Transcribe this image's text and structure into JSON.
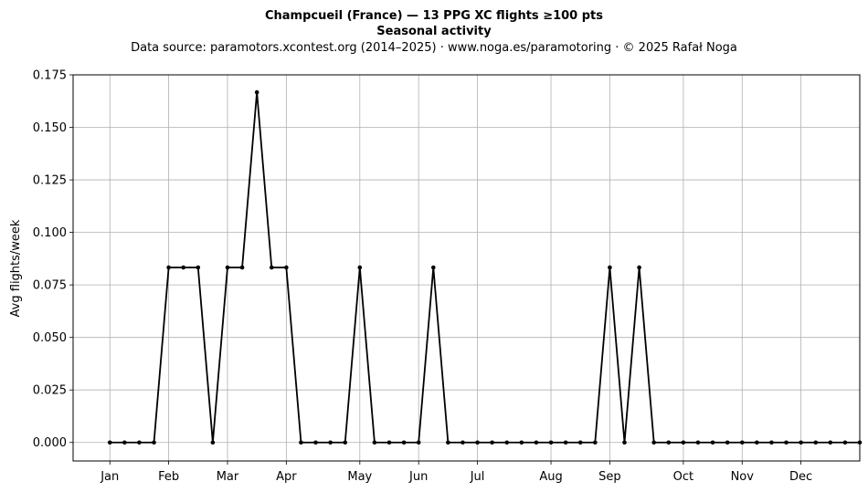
{
  "chart_data": {
    "type": "line",
    "title": "Champcueil (France)  —  13 PPG XC flights ≥100 pts",
    "subtitle": "Seasonal activity",
    "source_line": "Data source: paramotors.xcontest.org (2014–2025)  ·  www.noga.es/paramotoring  ·  © 2025 Rafał Noga",
    "xlabel": "",
    "ylabel": "Avg flights/week",
    "x_unit": "week",
    "xlim": [
      0,
      53.5
    ],
    "ylim": [
      -0.0088,
      0.175
    ],
    "grid": true,
    "yticks": [
      0.0,
      0.025,
      0.05,
      0.075,
      0.1,
      0.125,
      0.15,
      0.175
    ],
    "ytick_labels": [
      "0.000",
      "0.025",
      "0.050",
      "0.075",
      "0.100",
      "0.125",
      "0.150",
      "0.175"
    ],
    "xticks": [
      {
        "week": 2.5,
        "label": "Jan"
      },
      {
        "week": 6.5,
        "label": "Feb"
      },
      {
        "week": 10.5,
        "label": "Mar"
      },
      {
        "week": 14.5,
        "label": "Apr"
      },
      {
        "week": 19.5,
        "label": "May"
      },
      {
        "week": 23.5,
        "label": "Jun"
      },
      {
        "week": 27.5,
        "label": "Jul"
      },
      {
        "week": 32.5,
        "label": "Aug"
      },
      {
        "week": 36.5,
        "label": "Sep"
      },
      {
        "week": 41.5,
        "label": "Oct"
      },
      {
        "week": 45.5,
        "label": "Nov"
      },
      {
        "week": 49.5,
        "label": "Dec"
      }
    ],
    "series": [
      {
        "color": "#000000",
        "x": [
          2.5,
          3.5,
          4.5,
          5.5,
          6.5,
          7.5,
          8.5,
          9.5,
          10.5,
          11.5,
          12.5,
          13.5,
          14.5,
          15.5,
          16.5,
          17.5,
          18.5,
          19.5,
          20.5,
          21.5,
          22.5,
          23.5,
          24.5,
          25.5,
          26.5,
          27.5,
          28.5,
          29.5,
          30.5,
          31.5,
          32.5,
          33.5,
          34.5,
          35.5,
          36.5,
          37.5,
          38.5,
          39.5,
          40.5,
          41.5,
          42.5,
          43.5,
          44.5,
          45.5,
          46.5,
          47.5,
          48.5,
          49.5,
          50.5,
          51.5,
          52.5,
          53.5
        ],
        "y": [
          0,
          0,
          0,
          0,
          0.0833,
          0.0833,
          0.0833,
          0,
          0.0833,
          0.0833,
          0.1667,
          0.0833,
          0.0833,
          0,
          0,
          0,
          0,
          0.0833,
          0,
          0,
          0,
          0,
          0.0833,
          0,
          0,
          0,
          0,
          0,
          0,
          0,
          0,
          0,
          0,
          0,
          0.0833,
          0,
          0.0833,
          0,
          0,
          0,
          0,
          0,
          0,
          0,
          0,
          0,
          0,
          0,
          0,
          0,
          0,
          0
        ]
      }
    ]
  }
}
